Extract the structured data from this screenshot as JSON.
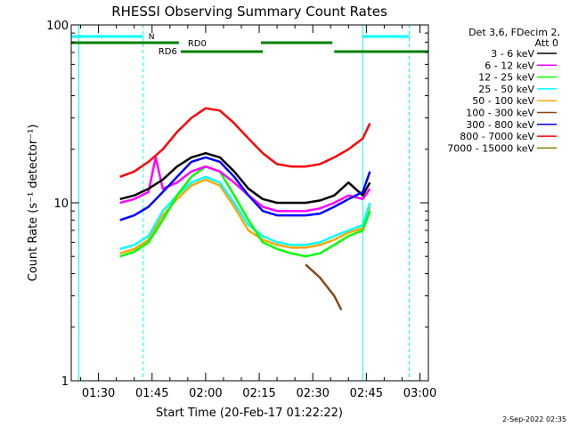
{
  "chart_data": {
    "type": "line",
    "title": "RHESSI Observing Summary Count Rates",
    "xlabel": "Start Time (20-Feb-17 01:22:22)",
    "ylabel": "Count Rate (s⁻¹ detector⁻¹)",
    "yscale": "log",
    "ylim": [
      1,
      100
    ],
    "y_ticks": [
      {
        "value": 1,
        "label": "1"
      },
      {
        "value": 10,
        "label": "10"
      },
      {
        "value": 100,
        "label": "100"
      }
    ],
    "xlim_minutes": [
      82.37,
      182.37
    ],
    "x_ticks": [
      {
        "minutes": 90,
        "label": "01:30"
      },
      {
        "minutes": 105,
        "label": "01:45"
      },
      {
        "minutes": 120,
        "label": "02:00"
      },
      {
        "minutes": 135,
        "label": "02:15"
      },
      {
        "minutes": 150,
        "label": "02:30"
      },
      {
        "minutes": 165,
        "label": "02:45"
      },
      {
        "minutes": 180,
        "label": "03:00"
      }
    ],
    "grid": false,
    "legend_position": "right",
    "legend_header": [
      "Det 3,6, FDecim 2,",
      "Att 0"
    ],
    "series": [
      {
        "name": "3 - 6 keV",
        "color": "#000000",
        "points": [
          [
            96,
            10.5
          ],
          [
            100,
            11
          ],
          [
            104,
            12
          ],
          [
            108,
            13.5
          ],
          [
            112,
            16
          ],
          [
            116,
            18
          ],
          [
            120,
            19
          ],
          [
            124,
            18
          ],
          [
            128,
            15
          ],
          [
            132,
            12
          ],
          [
            136,
            10.5
          ],
          [
            140,
            10
          ],
          [
            144,
            10
          ],
          [
            148,
            10
          ],
          [
            152,
            10.3
          ],
          [
            156,
            11
          ],
          [
            160,
            13
          ],
          [
            164,
            11
          ],
          [
            166,
            13
          ]
        ]
      },
      {
        "name": "6 - 12 keV",
        "color": "#ff00ff",
        "points": [
          [
            96,
            10
          ],
          [
            100,
            10.5
          ],
          [
            104,
            11.5
          ],
          [
            106,
            18
          ],
          [
            108,
            12
          ],
          [
            112,
            13
          ],
          [
            116,
            15
          ],
          [
            120,
            16
          ],
          [
            124,
            15
          ],
          [
            128,
            13
          ],
          [
            132,
            11
          ],
          [
            136,
            9.5
          ],
          [
            140,
            9
          ],
          [
            144,
            9
          ],
          [
            148,
            9
          ],
          [
            152,
            9.3
          ],
          [
            156,
            10
          ],
          [
            160,
            11
          ],
          [
            164,
            10.5
          ],
          [
            166,
            12
          ]
        ]
      },
      {
        "name": "12 - 25 keV",
        "color": "#00ff00",
        "points": [
          [
            96,
            5
          ],
          [
            100,
            5.3
          ],
          [
            104,
            6
          ],
          [
            108,
            8
          ],
          [
            112,
            11
          ],
          [
            116,
            14
          ],
          [
            120,
            16
          ],
          [
            124,
            15
          ],
          [
            128,
            11
          ],
          [
            132,
            8
          ],
          [
            136,
            6
          ],
          [
            140,
            5.5
          ],
          [
            144,
            5.2
          ],
          [
            148,
            5
          ],
          [
            152,
            5.2
          ],
          [
            156,
            5.8
          ],
          [
            160,
            6.5
          ],
          [
            164,
            7
          ],
          [
            166,
            9
          ]
        ]
      },
      {
        "name": "25 - 50 keV",
        "color": "#00ffff",
        "points": [
          [
            96,
            5.5
          ],
          [
            100,
            5.8
          ],
          [
            104,
            6.5
          ],
          [
            108,
            9
          ],
          [
            112,
            11
          ],
          [
            116,
            13
          ],
          [
            120,
            14
          ],
          [
            124,
            13
          ],
          [
            128,
            10
          ],
          [
            132,
            7.5
          ],
          [
            136,
            6.5
          ],
          [
            140,
            6
          ],
          [
            144,
            5.8
          ],
          [
            148,
            5.8
          ],
          [
            152,
            6
          ],
          [
            156,
            6.5
          ],
          [
            160,
            7
          ],
          [
            164,
            7.5
          ],
          [
            166,
            10
          ]
        ]
      },
      {
        "name": "50 - 100 keV",
        "color": "#ffa500",
        "points": [
          [
            96,
            5.2
          ],
          [
            100,
            5.5
          ],
          [
            104,
            6.2
          ],
          [
            108,
            8.5
          ],
          [
            112,
            10.5
          ],
          [
            116,
            12.5
          ],
          [
            120,
            13.5
          ],
          [
            124,
            12.5
          ],
          [
            128,
            9.5
          ],
          [
            132,
            7
          ],
          [
            136,
            6.2
          ],
          [
            140,
            5.8
          ],
          [
            144,
            5.6
          ],
          [
            148,
            5.6
          ],
          [
            152,
            5.8
          ],
          [
            156,
            6.2
          ],
          [
            160,
            6.8
          ],
          [
            164,
            7.2
          ],
          [
            166,
            9.5
          ]
        ]
      },
      {
        "name": "100 - 300 keV",
        "color": "#8b4513",
        "points": [
          [
            148,
            4.5
          ],
          [
            152,
            3.8
          ],
          [
            156,
            3
          ],
          [
            158,
            2.5
          ]
        ]
      },
      {
        "name": "300 - 800 keV",
        "color": "#0000ff",
        "points": [
          [
            96,
            8
          ],
          [
            100,
            8.5
          ],
          [
            104,
            9.5
          ],
          [
            108,
            11.5
          ],
          [
            112,
            14
          ],
          [
            116,
            17
          ],
          [
            120,
            18
          ],
          [
            124,
            17
          ],
          [
            128,
            14
          ],
          [
            132,
            11
          ],
          [
            136,
            9
          ],
          [
            140,
            8.5
          ],
          [
            144,
            8.5
          ],
          [
            148,
            8.5
          ],
          [
            152,
            8.7
          ],
          [
            156,
            9.5
          ],
          [
            160,
            10.5
          ],
          [
            164,
            11.5
          ],
          [
            166,
            15
          ]
        ]
      },
      {
        "name": "800 - 7000 keV",
        "color": "#ff0000",
        "points": [
          [
            96,
            14
          ],
          [
            100,
            15
          ],
          [
            104,
            17
          ],
          [
            108,
            20
          ],
          [
            112,
            25
          ],
          [
            116,
            30
          ],
          [
            120,
            34
          ],
          [
            124,
            33
          ],
          [
            128,
            28
          ],
          [
            132,
            23
          ],
          [
            136,
            19
          ],
          [
            140,
            16.5
          ],
          [
            144,
            16
          ],
          [
            148,
            16
          ],
          [
            152,
            16.5
          ],
          [
            156,
            18
          ],
          [
            160,
            20
          ],
          [
            164,
            23
          ],
          [
            166,
            28
          ]
        ]
      },
      {
        "name": "7000 - 15000 keV",
        "color": "#808000",
        "points": []
      }
    ],
    "indicators": {
      "night_label": "N",
      "night_color": "#00ffff",
      "rd_color": "#008000",
      "rd_labels": [
        "RD0",
        "RD6"
      ],
      "night_intervals": [
        [
          82.37,
          102.5
        ],
        [
          164,
          177
        ]
      ],
      "night_boundaries": [
        84.5,
        102.5,
        164,
        177
      ],
      "rd_upper_intervals": [
        [
          82.37,
          112.5
        ],
        [
          135.5,
          155.5
        ]
      ],
      "rd_lower_intervals": [
        [
          113,
          136
        ],
        [
          156,
          182.37
        ]
      ]
    }
  },
  "footer_timestamp": "2-Sep-2022 02:35"
}
